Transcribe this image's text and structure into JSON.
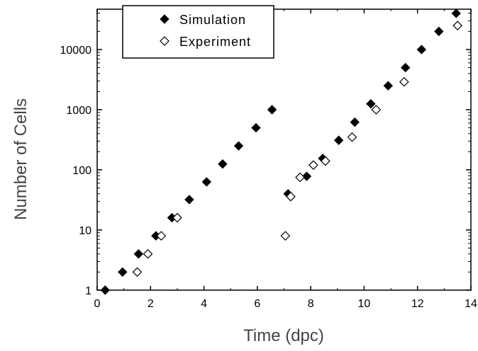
{
  "chart_data": {
    "type": "scatter",
    "xlabel": "Time (dpc)",
    "ylabel": "Number of Cells",
    "xlim": [
      0,
      14
    ],
    "ylim": [
      1,
      40000
    ],
    "yscale": "log",
    "x_ticks": [
      0,
      2,
      4,
      6,
      8,
      10,
      12,
      14
    ],
    "x_tick_labels": [
      "0",
      "2",
      "4",
      "6",
      "8",
      "10",
      "12",
      "14"
    ],
    "y_ticks": [
      1,
      10,
      100,
      1000,
      10000
    ],
    "y_tick_labels": [
      "1",
      "10",
      "100",
      "1000",
      "10000"
    ],
    "legend_position": "top-center",
    "grid": false,
    "series": [
      {
        "name": "Simulation",
        "marker": "filled-diamond",
        "color": "#000000",
        "points": [
          [
            0.3,
            1
          ],
          [
            0.95,
            2
          ],
          [
            1.55,
            4
          ],
          [
            2.2,
            8
          ],
          [
            2.8,
            16
          ],
          [
            3.45,
            32
          ],
          [
            4.1,
            63
          ],
          [
            4.7,
            125
          ],
          [
            5.3,
            250
          ],
          [
            5.95,
            500
          ],
          [
            6.55,
            1000
          ],
          [
            7.15,
            40
          ],
          [
            7.85,
            78
          ],
          [
            8.45,
            155
          ],
          [
            9.05,
            310
          ],
          [
            9.65,
            620
          ],
          [
            10.25,
            1250
          ],
          [
            10.9,
            2500
          ],
          [
            11.55,
            5000
          ],
          [
            12.15,
            10000
          ],
          [
            12.8,
            20000
          ],
          [
            13.45,
            40000
          ]
        ]
      },
      {
        "name": "Experiment",
        "marker": "open-diamond",
        "color": "#000000",
        "points": [
          [
            1.5,
            2
          ],
          [
            1.9,
            4
          ],
          [
            2.4,
            8
          ],
          [
            3.0,
            16
          ],
          [
            7.05,
            8
          ],
          [
            7.25,
            36
          ],
          [
            7.6,
            75
          ],
          [
            8.1,
            120
          ],
          [
            8.55,
            140
          ],
          [
            9.55,
            350
          ],
          [
            10.45,
            1000
          ],
          [
            11.5,
            2900
          ],
          [
            13.5,
            25000
          ]
        ]
      }
    ]
  }
}
